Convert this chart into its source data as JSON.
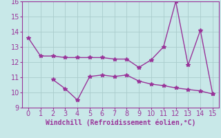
{
  "x": [
    0,
    1,
    2,
    3,
    4,
    5,
    6,
    7,
    8,
    9,
    10,
    11,
    12,
    13,
    14,
    15
  ],
  "line1": [
    13.6,
    12.4,
    12.4,
    12.3,
    12.3,
    12.3,
    12.3,
    12.2,
    12.2,
    11.65,
    12.15,
    13.0,
    16.0,
    11.8,
    14.1,
    9.9
  ],
  "line2": [
    null,
    null,
    10.85,
    10.25,
    9.5,
    11.05,
    11.15,
    11.05,
    11.15,
    10.75,
    10.55,
    10.45,
    10.3,
    10.2,
    10.1,
    9.9
  ],
  "color": "#993399",
  "bg_color": "#c8e8e8",
  "grid_color": "#aacccc",
  "xlabel": "Windchill (Refroidissement éolien,°C)",
  "xlim": [
    -0.5,
    15.5
  ],
  "ylim": [
    9,
    16
  ],
  "yticks": [
    9,
    10,
    11,
    12,
    13,
    14,
    15,
    16
  ],
  "xticks": [
    0,
    1,
    2,
    3,
    4,
    5,
    6,
    7,
    8,
    9,
    10,
    11,
    12,
    13,
    14,
    15
  ],
  "marker": "*",
  "markersize": 4,
  "linewidth": 1.0,
  "tick_fontsize": 7,
  "xlabel_fontsize": 7
}
